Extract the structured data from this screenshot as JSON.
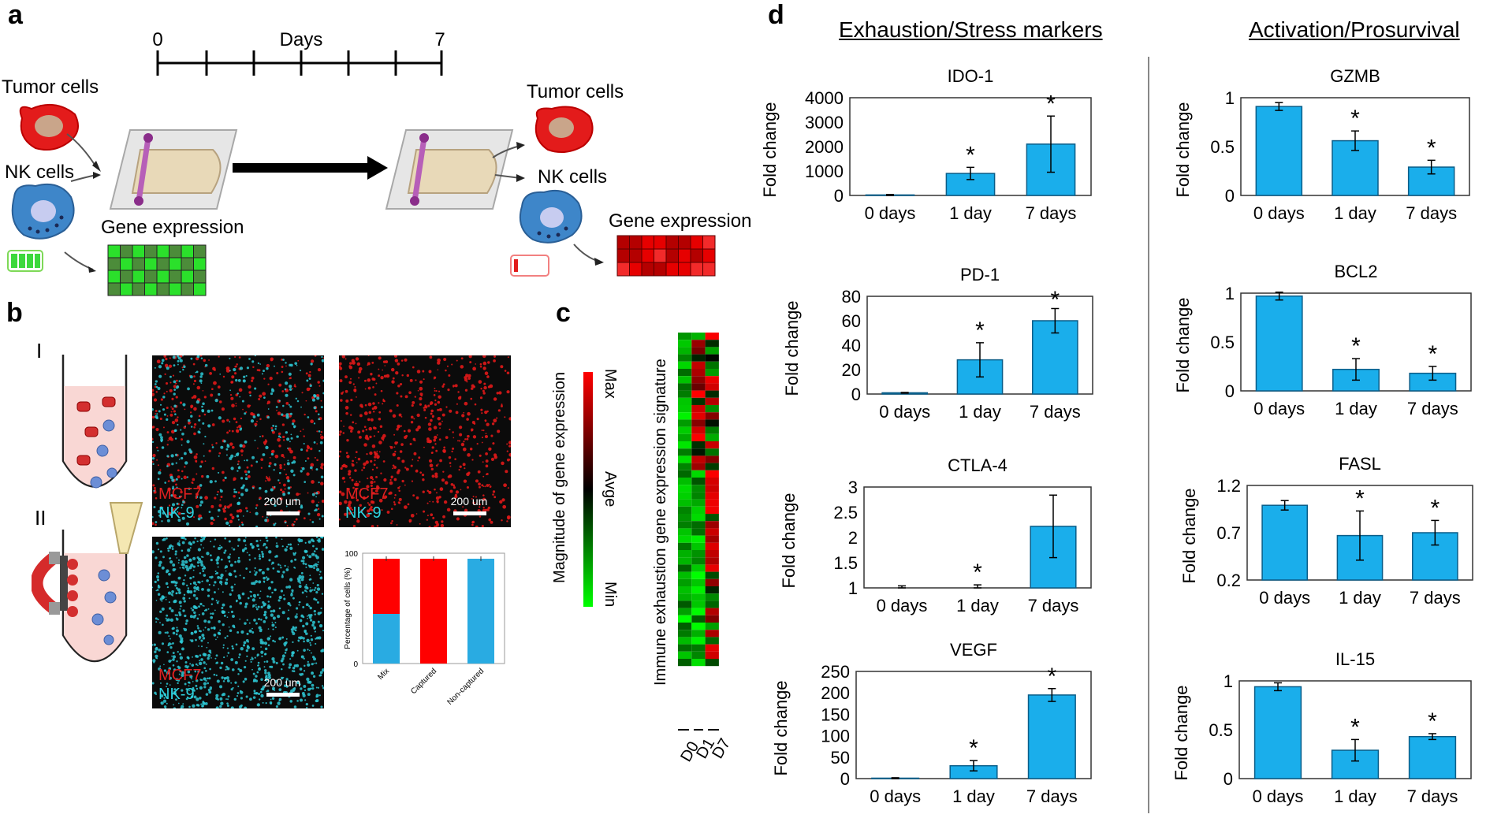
{
  "panel_letters": {
    "a": "a",
    "b": "b",
    "c": "c",
    "d": "d"
  },
  "panel_a": {
    "timeline_start": "0",
    "timeline_label": "Days",
    "timeline_end": "7",
    "tumor_cells_left": "Tumor cells",
    "nk_cells_left": "NK cells",
    "gene_expression_left": "Gene expression",
    "tumor_cells_right": "Tumor cells",
    "nk_cells_right": "NK cells",
    "gene_expression_right": "Gene expression"
  },
  "panel_b": {
    "row_I": "I",
    "row_II": "II",
    "mcf7": "MCF7",
    "nk9": "NK-9",
    "scale": "200 um",
    "chart_data": {
      "type": "bar",
      "stacked": true,
      "categories": [
        "Mix",
        "Captured",
        "Non-captured"
      ],
      "series": [
        {
          "name": "NK-9",
          "color": "#29ABE2",
          "values": [
            45,
            0,
            95
          ]
        },
        {
          "name": "MCF7",
          "color": "#FF0000",
          "values": [
            50,
            95,
            0
          ]
        }
      ],
      "ylabel": "Percentage of cells (%)",
      "ylim": [
        0,
        100
      ],
      "yticks": [
        "0",
        "100"
      ]
    }
  },
  "panel_c": {
    "scale_max": "Max",
    "scale_avg": "Avge",
    "scale_min": "Min",
    "scale_title": "Magnitude of gene expression",
    "heatmap_title": "Immune exhaustion gene expression signature",
    "columns": [
      "D0",
      "D1",
      "D7"
    ]
  },
  "panel_d": {
    "left_header": "Exhaustion/Stress markers",
    "right_header": "Activation/Prosurvival",
    "chart_data": [
      {
        "type": "bar",
        "title": "IDO-1",
        "categories": [
          "0 days",
          "1 day",
          "7 days"
        ],
        "values": [
          20,
          900,
          2100
        ],
        "errors": [
          20,
          250,
          1150
        ],
        "significant": [
          false,
          true,
          true
        ],
        "ylabel": "Fold change",
        "ylim": [
          0,
          4000
        ],
        "yticks": [
          "0",
          "1000",
          "2000",
          "3000",
          "4000"
        ]
      },
      {
        "type": "bar",
        "title": "PD-1",
        "categories": [
          "0 days",
          "1 day",
          "7 days"
        ],
        "values": [
          1,
          28,
          60
        ],
        "errors": [
          0.3,
          14,
          10
        ],
        "significant": [
          false,
          true,
          true
        ],
        "ylabel": "Fold change",
        "ylim": [
          0,
          80
        ],
        "yticks": [
          "0",
          "20",
          "40",
          "60",
          "80"
        ]
      },
      {
        "type": "bar",
        "title": "CTLA-4",
        "categories": [
          "0 days",
          "1 day",
          "7 days"
        ],
        "values": [
          1.0,
          1.0,
          2.22
        ],
        "errors": [
          0.04,
          0.06,
          0.62
        ],
        "significant": [
          false,
          true,
          false
        ],
        "ylabel": "Fold change",
        "ylim": [
          1,
          3
        ],
        "yticks": [
          "1",
          "1.5",
          "2",
          "2.5",
          "3"
        ]
      },
      {
        "type": "bar",
        "title": "VEGF",
        "categories": [
          "0 days",
          "1 day",
          "7 days"
        ],
        "values": [
          1,
          30,
          195
        ],
        "errors": [
          1,
          12,
          15
        ],
        "significant": [
          false,
          true,
          true
        ],
        "ylabel": "Fold change",
        "ylim": [
          0,
          250
        ],
        "yticks": [
          "0",
          "50",
          "100",
          "150",
          "200",
          "250"
        ]
      },
      {
        "type": "bar",
        "title": "GZMB",
        "categories": [
          "0 days",
          "1 day",
          "7 days"
        ],
        "values": [
          0.91,
          0.56,
          0.29
        ],
        "errors": [
          0.04,
          0.1,
          0.07
        ],
        "significant": [
          false,
          true,
          true
        ],
        "ylabel": "Fold change",
        "ylim": [
          0,
          1
        ],
        "yticks": [
          "0",
          "0.5",
          "1"
        ]
      },
      {
        "type": "bar",
        "title": "BCL2",
        "categories": [
          "0 days",
          "1 day",
          "7 days"
        ],
        "values": [
          0.97,
          0.22,
          0.18
        ],
        "errors": [
          0.04,
          0.11,
          0.07
        ],
        "significant": [
          false,
          true,
          true
        ],
        "ylabel": "Fold change",
        "ylim": [
          0,
          1
        ],
        "yticks": [
          "0",
          "0.5",
          "1"
        ]
      },
      {
        "type": "bar",
        "title": "FASL",
        "categories": [
          "0 days",
          "1 day",
          "7 days"
        ],
        "values": [
          0.99,
          0.67,
          0.7
        ],
        "errors": [
          0.05,
          0.26,
          0.13
        ],
        "significant": [
          false,
          true,
          true
        ],
        "ylabel": "Fold change",
        "ylim": [
          0.2,
          1.2
        ],
        "yticks": [
          "0.2",
          "0.7",
          "1.2"
        ]
      },
      {
        "type": "bar",
        "title": "IL-15",
        "categories": [
          "0 days",
          "1 day",
          "7 days"
        ],
        "values": [
          0.94,
          0.29,
          0.43
        ],
        "errors": [
          0.04,
          0.11,
          0.03
        ],
        "significant": [
          false,
          true,
          true
        ],
        "ylabel": "Fold change",
        "ylim": [
          0,
          1
        ],
        "yticks": [
          "0",
          "0.5",
          "1"
        ]
      }
    ]
  }
}
